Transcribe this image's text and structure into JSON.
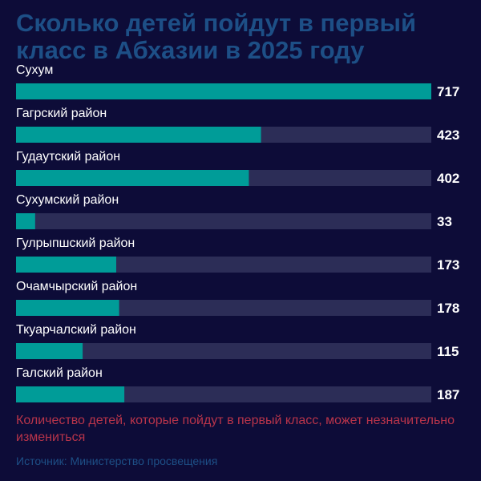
{
  "title": "Сколько детей пойдут в первый класс в Абхазии в 2025 году",
  "note": "Количество детей, которые пойдут в первый класс, может незначительно измениться",
  "source": "Источник: Министерство просвещения",
  "colors": {
    "background": "#0d0c38",
    "bar": "#009c98",
    "track": "#2c2d57",
    "title": "#1d4f86",
    "note": "#b8344a",
    "label": "#ffffff"
  },
  "chart_data": {
    "type": "bar",
    "orientation": "horizontal",
    "categories": [
      "Сухум",
      "Гагрский район",
      "Гудаутский район",
      "Сухумский район",
      "Гулрыпшский район",
      "Очамчырский район",
      "Ткуарчалский район",
      "Галский район"
    ],
    "values": [
      717,
      423,
      402,
      33,
      173,
      178,
      115,
      187
    ],
    "value_labels": [
      "717",
      "423",
      "402",
      "33",
      "173",
      "178",
      "115",
      "187"
    ],
    "xlim": [
      0,
      717
    ],
    "grid": false,
    "legend": "none"
  }
}
